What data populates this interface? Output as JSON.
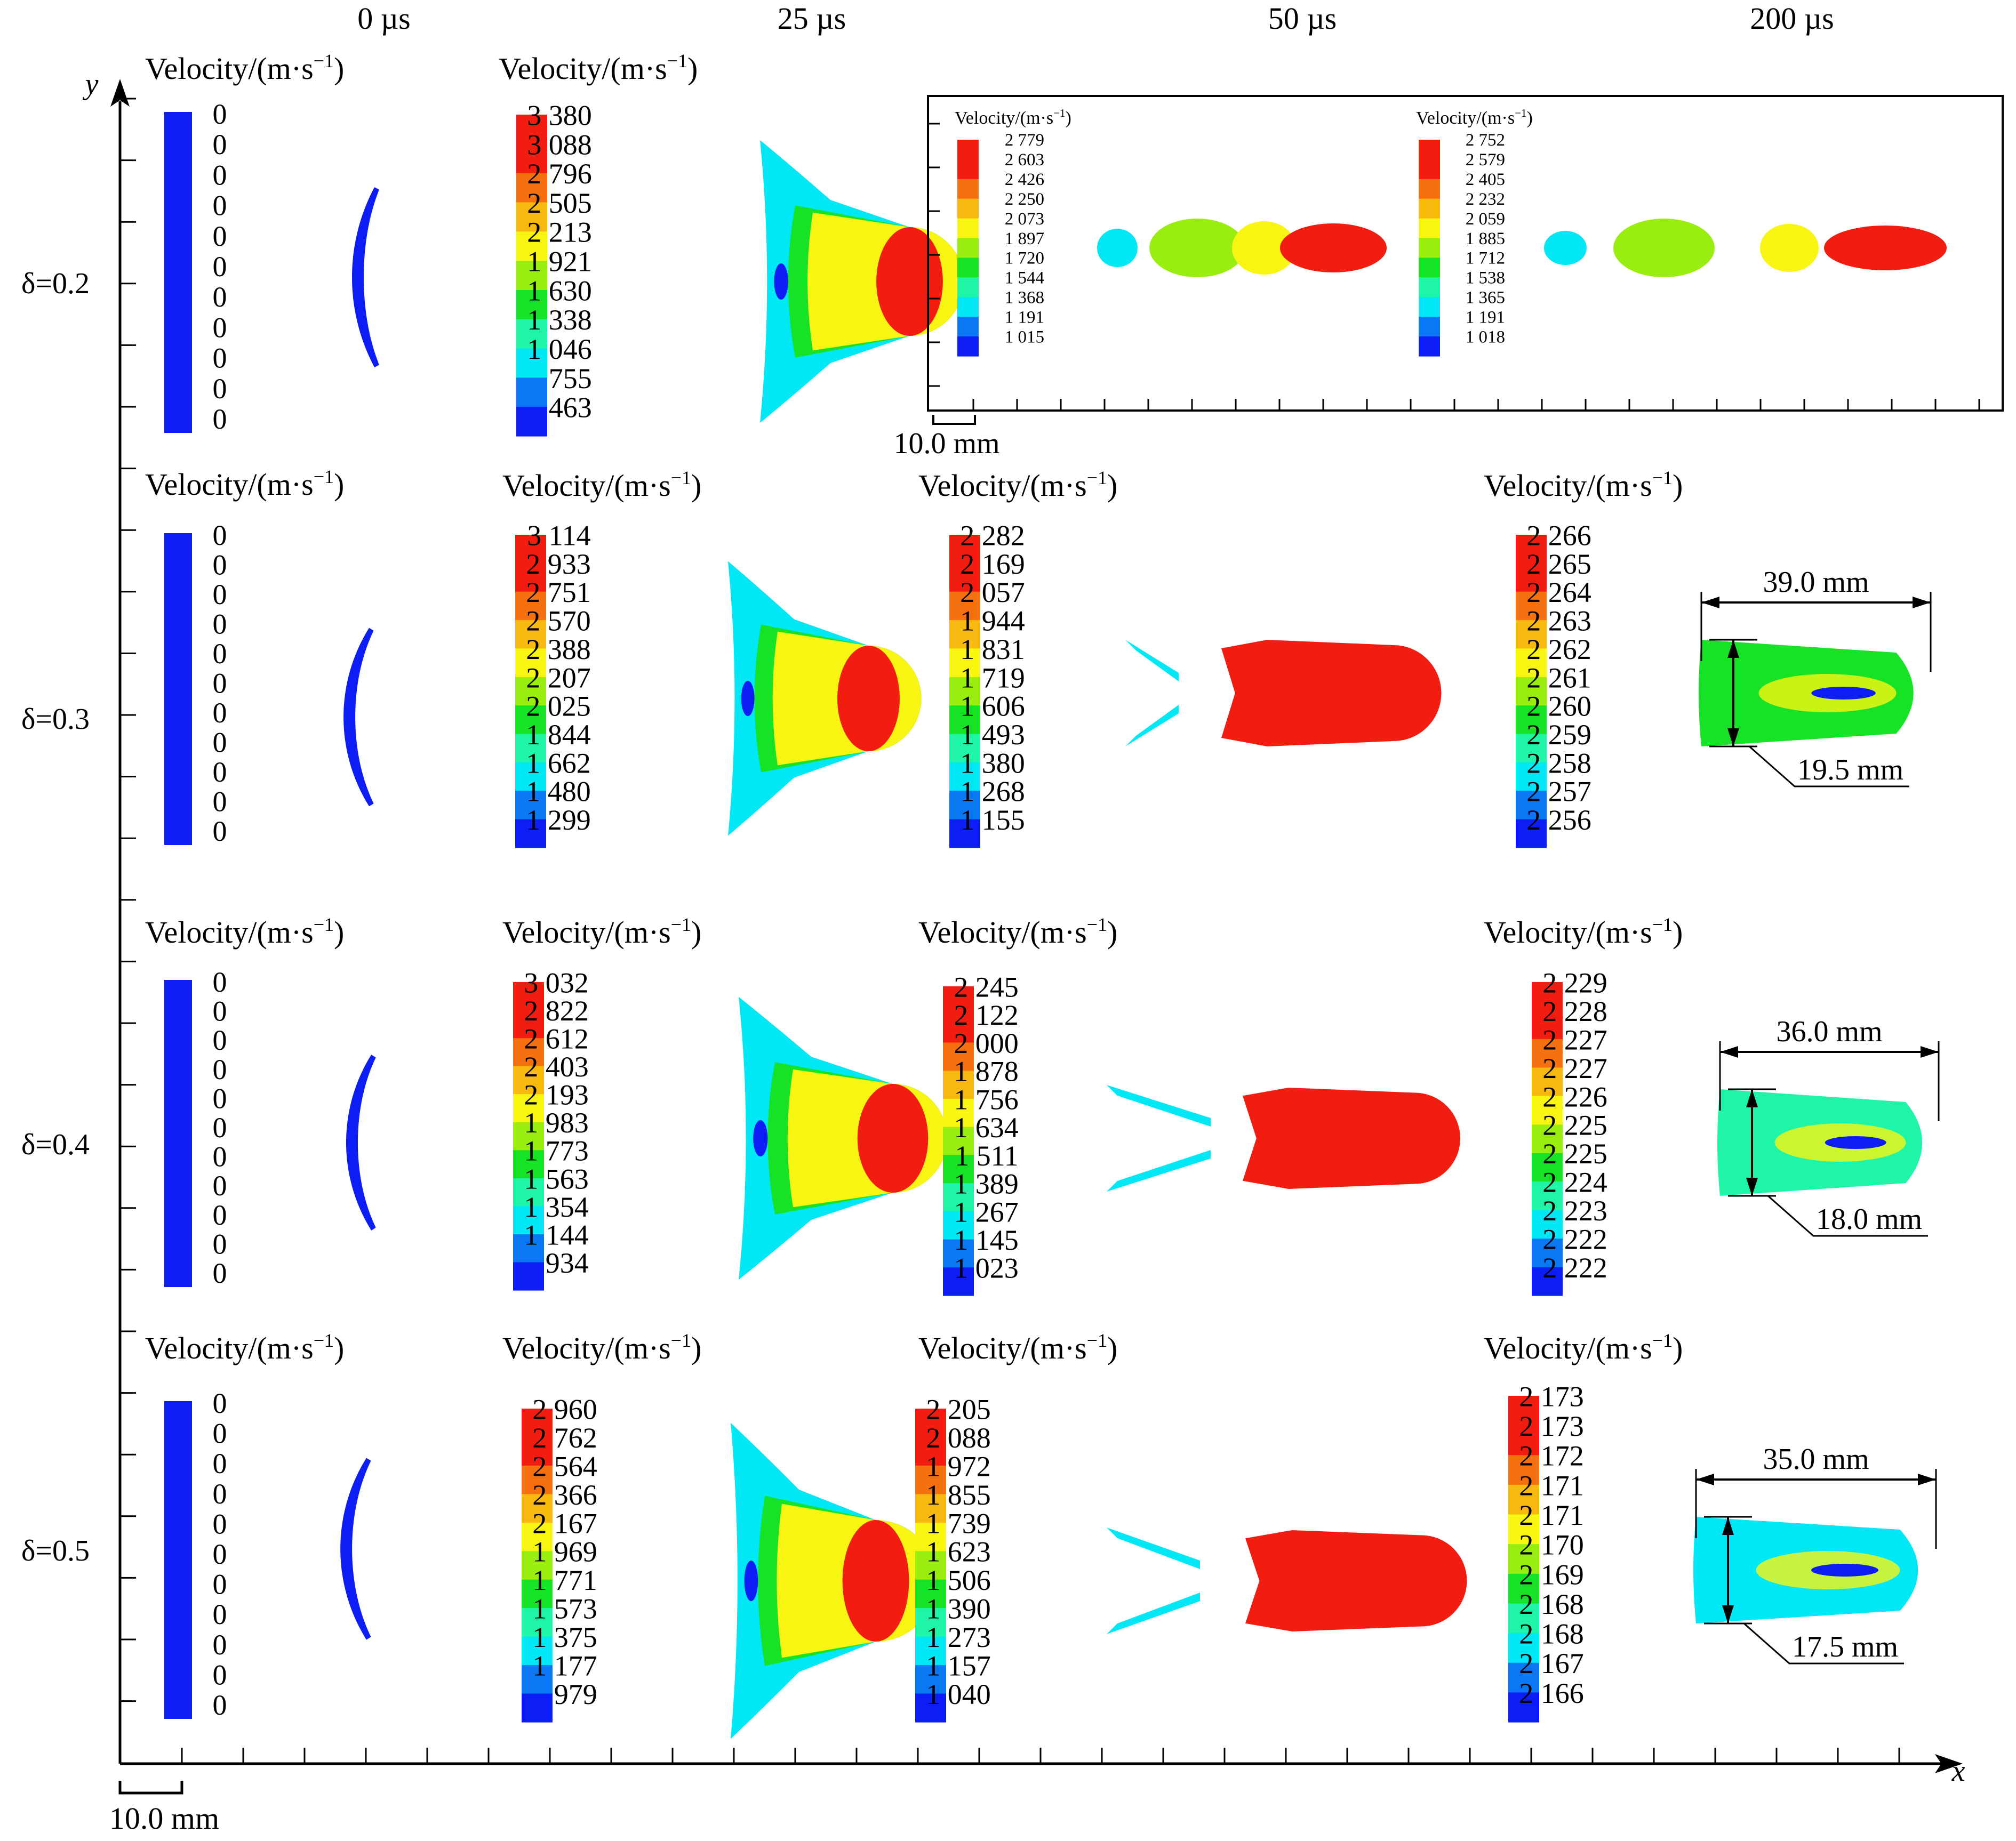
{
  "time_headers": [
    "0 µs",
    "25 µs",
    "50 µs",
    "200 µs"
  ],
  "axes": {
    "x_label": "x",
    "y_label": "y"
  },
  "scale_bar": "10.0 mm",
  "legend_title": "Velocity/(m·s",
  "legend_sup": "−1",
  "legend_suffix": ")",
  "colors": [
    "#0d1df5",
    "#0a78f5",
    "#00e8f5",
    "#1ef5a6",
    "#16e326",
    "#99ee10",
    "#f7f511",
    "#f7b90f",
    "#f5700f",
    "#f31c10",
    "#f30b06"
  ],
  "rows": [
    {
      "delta": "δ=0.2",
      "legend0": [
        "0",
        "0",
        "0",
        "0",
        "0",
        "0",
        "0",
        "0",
        "0",
        "0",
        "0"
      ],
      "legend25": [
        "3 380",
        "3 088",
        "2 796",
        "2 505",
        "2 213",
        "1 921",
        "1 630",
        "1 338",
        "1 046",
        "755",
        "463"
      ],
      "inset": {
        "scale_bar": "10.0 mm",
        "legend50": [
          "2 779",
          "2 603",
          "2 426",
          "2 250",
          "2 073",
          "1 897",
          "1 720",
          "1 544",
          "1 368",
          "1 191",
          "1 015"
        ],
        "legend200": [
          "2 752",
          "2 579",
          "2 405",
          "2 232",
          "2 059",
          "1 885",
          "1 712",
          "1 538",
          "1 365",
          "1 191",
          "1 018"
        ]
      }
    },
    {
      "delta": "δ=0.3",
      "legend0": [
        "0",
        "0",
        "0",
        "0",
        "0",
        "0",
        "0",
        "0",
        "0",
        "0",
        "0"
      ],
      "legend25": [
        "3 114",
        "2 933",
        "2 751",
        "2 570",
        "2 388",
        "2 207",
        "2 025",
        "1 844",
        "1 662",
        "1 480",
        "1 299"
      ],
      "legend50": [
        "2 282",
        "2 169",
        "2 057",
        "1 944",
        "1 831",
        "1 719",
        "1 606",
        "1 493",
        "1 380",
        "1 268",
        "1 155"
      ],
      "legend200": [
        "2 266",
        "2 265",
        "2 264",
        "2 263",
        "2 262",
        "2 261",
        "2 260",
        "2 259",
        "2 258",
        "2 257",
        "2 256"
      ],
      "length": "39.0 mm",
      "diameter": "19.5 mm"
    },
    {
      "delta": "δ=0.4",
      "legend0": [
        "0",
        "0",
        "0",
        "0",
        "0",
        "0",
        "0",
        "0",
        "0",
        "0",
        "0"
      ],
      "legend25": [
        "3 032",
        "2 822",
        "2 612",
        "2 403",
        "2 193",
        "1 983",
        "1 773",
        "1 563",
        "1 354",
        "1 144",
        "934"
      ],
      "legend50": [
        "2 245",
        "2 122",
        "2 000",
        "1 878",
        "1 756",
        "1 634",
        "1 511",
        "1 389",
        "1 267",
        "1 145",
        "1 023"
      ],
      "legend200": [
        "2 229",
        "2 228",
        "2 227",
        "2 227",
        "2 226",
        "2 225",
        "2 225",
        "2 224",
        "2 223",
        "2 222",
        "2 222"
      ],
      "length": "36.0 mm",
      "diameter": "18.0 mm"
    },
    {
      "delta": "δ=0.5",
      "legend0": [
        "0",
        "0",
        "0",
        "0",
        "0",
        "0",
        "0",
        "0",
        "0",
        "0",
        "0"
      ],
      "legend25": [
        "2 960",
        "2 762",
        "2 564",
        "2 366",
        "2 167",
        "1 969",
        "1 771",
        "1 573",
        "1 375",
        "1 177",
        "979"
      ],
      "legend50": [
        "2 205",
        "2 088",
        "1 972",
        "1 855",
        "1 739",
        "1 623",
        "1 506",
        "1 390",
        "1 273",
        "1 157",
        "1 040"
      ],
      "legend200": [
        "2 173",
        "2 173",
        "2 172",
        "2 171",
        "2 171",
        "2 170",
        "2 169",
        "2 168",
        "2 168",
        "2 167",
        "2 166"
      ],
      "length": "35.0 mm",
      "diameter": "17.5 mm"
    }
  ]
}
